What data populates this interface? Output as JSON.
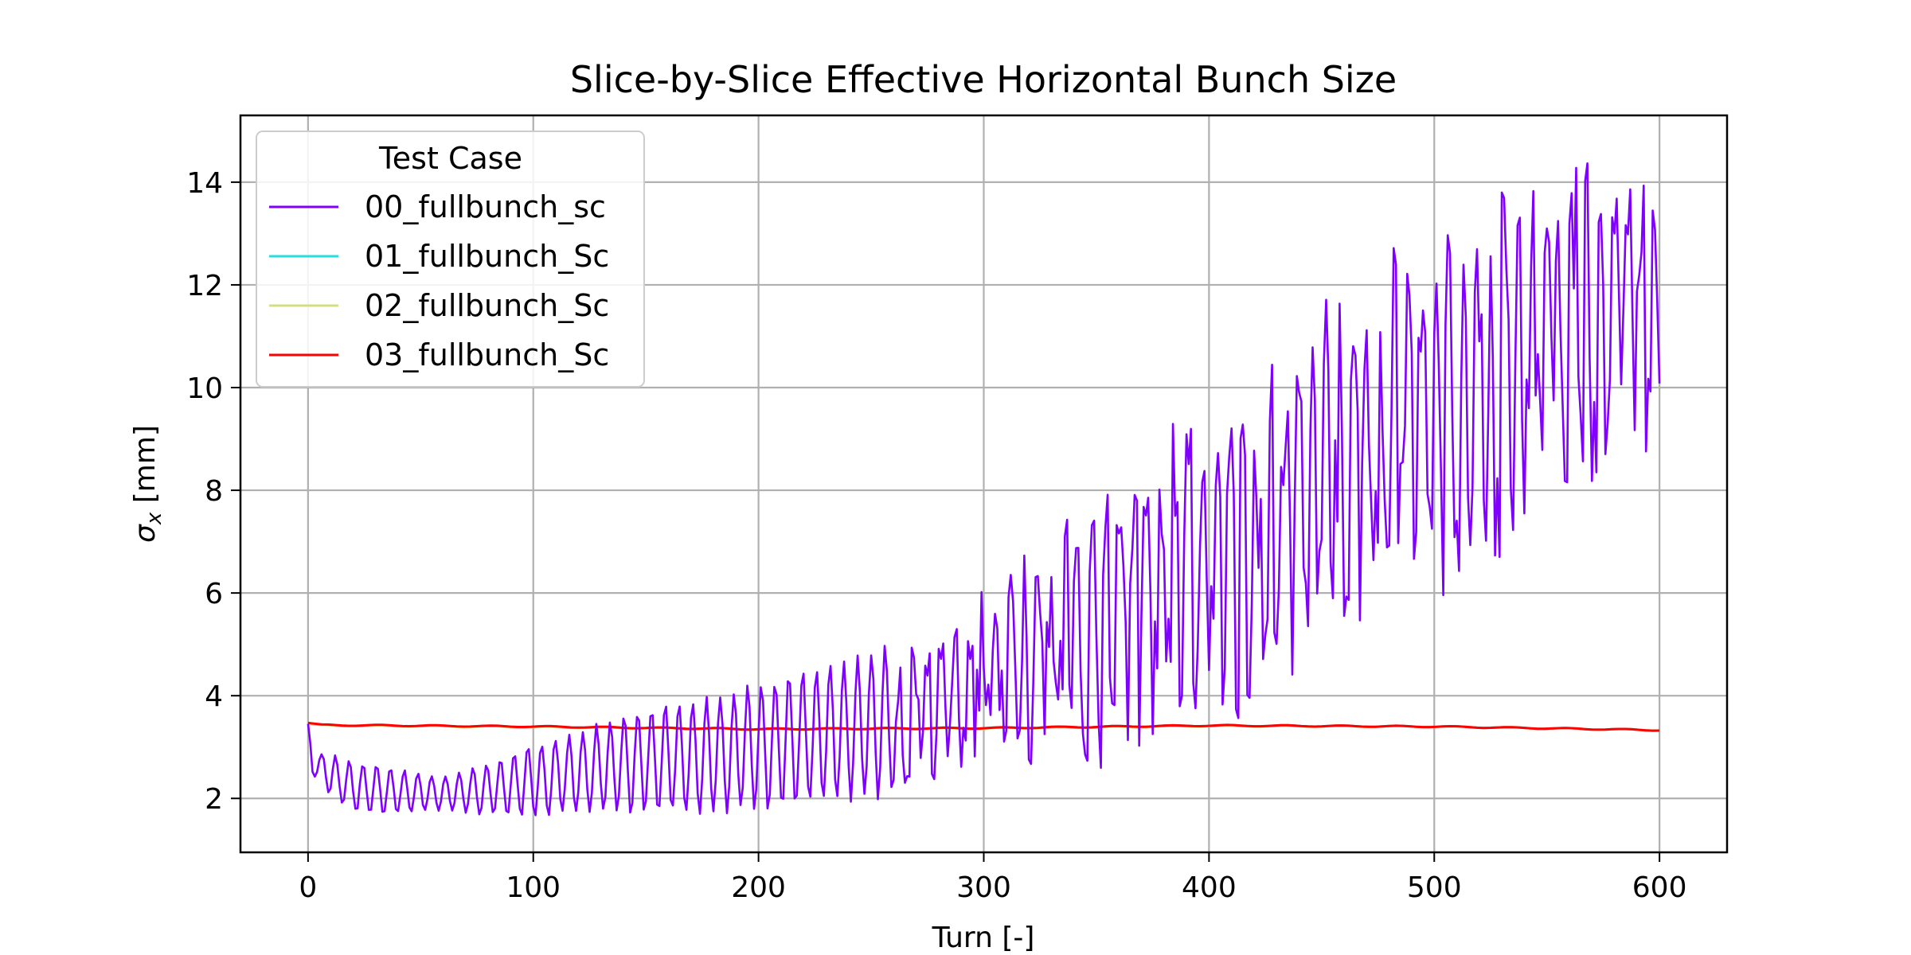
{
  "chart_data": {
    "type": "line",
    "title": "Slice-by-Slice Effective Horizontal Bunch Size",
    "xlabel": "Turn [-]",
    "ylabel_symbol": "σ",
    "ylabel_subscript": "x",
    "ylabel_unit": " [mm]",
    "xlim": [
      -30,
      630
    ],
    "ylim": [
      0.95,
      15.3
    ],
    "xticks": [
      0,
      100,
      200,
      300,
      400,
      500,
      600
    ],
    "yticks": [
      2,
      4,
      6,
      8,
      10,
      12,
      14
    ],
    "grid": true,
    "legend": {
      "title": "Test Case",
      "placement": "upper-left",
      "entries": [
        "00_fullbunch_sc",
        "01_fullbunch_Sc",
        "02_fullbunch_Sc",
        "03_fullbunch_Sc"
      ]
    },
    "series": [
      {
        "name": "00_fullbunch_sc",
        "color": "#8000ff",
        "description": "oscillating between upper and lower envelopes (period about 6 turns)",
        "x_envelope": [
          0,
          2,
          5,
          10,
          20,
          30,
          45,
          60,
          80,
          100,
          120,
          150,
          180,
          200,
          230,
          260,
          280,
          300,
          320,
          340,
          360,
          380,
          400,
          420,
          440,
          460,
          480,
          500,
          520,
          540,
          560,
          580,
          600
        ],
        "upper": [
          3.45,
          2.8,
          2.9,
          2.9,
          2.75,
          2.7,
          2.55,
          2.45,
          2.7,
          3.1,
          3.35,
          3.85,
          4.0,
          4.3,
          4.7,
          5.1,
          5.4,
          6.2,
          7.0,
          7.8,
          8.5,
          9.2,
          9.8,
          10.5,
          11.3,
          12.2,
          12.8,
          13.5,
          14.2,
          14.5,
          14.6,
          14.5,
          14.0
        ],
        "lower": [
          3.45,
          2.4,
          2.4,
          2.0,
          1.7,
          1.65,
          1.7,
          1.75,
          1.65,
          1.6,
          1.65,
          1.65,
          1.65,
          1.7,
          1.8,
          2.0,
          2.3,
          2.4,
          2.4,
          2.4,
          2.5,
          2.7,
          3.0,
          3.3,
          4.3,
          4.7,
          5.3,
          5.7,
          6.2,
          7.0,
          7.5,
          8.0,
          8.4
        ]
      },
      {
        "name": "01_fullbunch_Sc",
        "color": "#2adddd",
        "x": [
          0,
          5,
          100,
          200,
          300,
          400,
          500,
          600
        ],
        "y": [
          3.45,
          3.42,
          3.4,
          3.35,
          3.37,
          3.42,
          3.4,
          3.33
        ]
      },
      {
        "name": "02_fullbunch_Sc",
        "color": "#d4dd80",
        "x": [
          0,
          5,
          100,
          200,
          300,
          400,
          500,
          600
        ],
        "y": [
          3.45,
          3.42,
          3.39,
          3.34,
          3.36,
          3.41,
          3.4,
          3.33
        ]
      },
      {
        "name": "03_fullbunch_Sc",
        "color": "#ff0000",
        "x": [
          0,
          5,
          100,
          200,
          300,
          400,
          500,
          600
        ],
        "y": [
          3.47,
          3.43,
          3.4,
          3.35,
          3.37,
          3.42,
          3.4,
          3.33
        ]
      }
    ]
  }
}
